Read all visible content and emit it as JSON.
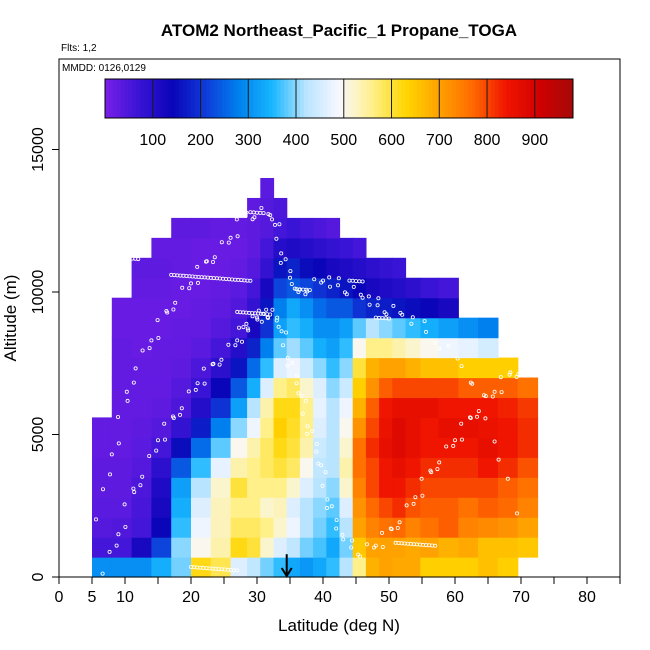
{
  "chart_data": {
    "type": "heatmap",
    "title": "ATOM2 Northeast_Pacific_1 Propane_TOGA",
    "flights_label": "Flts: 1,2",
    "dates_label": "MMDD: 0126,0129",
    "xlabel": "Latitude (deg N)",
    "ylabel": "Altitude (m)",
    "xlim": [
      0,
      85
    ],
    "ylim": [
      0,
      17500
    ],
    "x_ticks": [
      0,
      5,
      10,
      20,
      30,
      40,
      50,
      60,
      70,
      80
    ],
    "x_minor_ticks": [
      15,
      25,
      35,
      45,
      55,
      65,
      75,
      85
    ],
    "y_ticks": [
      0,
      5000,
      10000,
      15000
    ],
    "colorbar": {
      "range": [
        0,
        980
      ],
      "ticks": [
        100,
        200,
        300,
        400,
        500,
        600,
        700,
        800,
        900
      ],
      "colors": [
        "#7a1fe8",
        "#3a14d6",
        "#0a05b8",
        "#0f3ad8",
        "#0080ee",
        "#18b6ff",
        "#b8e4ff",
        "#f8f8ff",
        "#fff08a",
        "#ffd600",
        "#ffa200",
        "#ff6a00",
        "#f01500",
        "#d00000",
        "#a40a0a"
      ]
    },
    "lat_bins": [
      6.5,
      9.5,
      12.5,
      15.5,
      18.5,
      21.5,
      24.5,
      27.5,
      29.5,
      31.5,
      33.5,
      35.5,
      37.5,
      39.5,
      41.5,
      43.5,
      45.5,
      47.5,
      49.5,
      51.5,
      53.5,
      56,
      59,
      62,
      65,
      68,
      71
    ],
    "alt_bins": [
      0,
      700,
      1400,
      2100,
      2800,
      3500,
      4200,
      4900,
      5600,
      6300,
      7000,
      7700,
      8400,
      9100,
      9800,
      10500,
      11200,
      11900,
      12600,
      13300
    ],
    "values": [
      [
        300,
        300,
        300,
        340,
        390,
        620,
        590,
        460,
        430,
        390,
        360,
        330,
        310,
        330,
        360,
        420,
        560,
        680,
        700,
        690,
        690,
        640,
        640,
        640,
        660,
        640,
        0
      ],
      [
        60,
        60,
        120,
        220,
        400,
        500,
        540,
        620,
        600,
        520,
        460,
        430,
        390,
        370,
        330,
        390,
        650,
        700,
        700,
        700,
        690,
        700,
        680,
        690,
        660,
        660,
        650
      ],
      [
        40,
        45,
        60,
        140,
        360,
        480,
        530,
        580,
        580,
        560,
        520,
        480,
        420,
        390,
        360,
        420,
        700,
        740,
        760,
        770,
        740,
        760,
        780,
        740,
        730,
        720,
        700
      ],
      [
        35,
        35,
        55,
        120,
        340,
        460,
        530,
        560,
        560,
        520,
        530,
        460,
        420,
        400,
        380,
        460,
        720,
        770,
        800,
        820,
        790,
        780,
        780,
        760,
        780,
        770,
        740
      ],
      [
        30,
        30,
        50,
        110,
        320,
        420,
        520,
        600,
        560,
        560,
        560,
        520,
        460,
        420,
        400,
        520,
        740,
        800,
        840,
        840,
        820,
        800,
        800,
        800,
        800,
        780,
        760
      ],
      [
        30,
        30,
        40,
        90,
        240,
        360,
        470,
        540,
        560,
        580,
        600,
        580,
        500,
        430,
        420,
        540,
        760,
        800,
        840,
        860,
        840,
        820,
        820,
        820,
        840,
        820,
        790
      ],
      [
        25,
        25,
        35,
        60,
        150,
        260,
        380,
        500,
        540,
        580,
        620,
        600,
        540,
        440,
        420,
        520,
        760,
        820,
        860,
        880,
        860,
        840,
        840,
        840,
        860,
        840,
        820
      ],
      [
        25,
        25,
        30,
        40,
        80,
        170,
        280,
        400,
        480,
        560,
        640,
        610,
        560,
        460,
        420,
        500,
        720,
        800,
        850,
        880,
        860,
        840,
        860,
        860,
        850,
        840,
        820
      ],
      [
        0,
        25,
        25,
        30,
        50,
        100,
        200,
        320,
        420,
        540,
        620,
        620,
        560,
        470,
        420,
        480,
        680,
        780,
        840,
        860,
        860,
        860,
        840,
        840,
        840,
        830,
        810
      ],
      [
        0,
        25,
        25,
        25,
        40,
        70,
        140,
        240,
        340,
        460,
        560,
        580,
        520,
        460,
        400,
        440,
        640,
        720,
        780,
        800,
        800,
        800,
        800,
        780,
        780,
        780,
        760
      ],
      [
        0,
        25,
        25,
        25,
        30,
        50,
        90,
        160,
        260,
        360,
        460,
        480,
        440,
        400,
        360,
        400,
        600,
        680,
        700,
        700,
        680,
        660,
        660,
        640,
        640,
        640,
        0
      ],
      [
        0,
        25,
        20,
        25,
        25,
        35,
        60,
        100,
        180,
        280,
        380,
        410,
        380,
        340,
        320,
        360,
        500,
        560,
        560,
        540,
        520,
        500,
        480,
        470,
        450,
        0,
        0
      ],
      [
        0,
        20,
        20,
        20,
        25,
        25,
        40,
        60,
        120,
        200,
        320,
        360,
        340,
        300,
        300,
        320,
        380,
        420,
        400,
        380,
        360,
        340,
        320,
        300,
        280,
        0,
        0
      ],
      [
        0,
        20,
        20,
        20,
        20,
        25,
        30,
        45,
        80,
        160,
        280,
        330,
        300,
        260,
        240,
        240,
        200,
        180,
        170,
        160,
        150,
        140,
        120,
        0,
        0,
        0,
        0
      ],
      [
        0,
        0,
        25,
        25,
        20,
        20,
        25,
        35,
        60,
        120,
        220,
        240,
        220,
        200,
        180,
        160,
        140,
        120,
        110,
        100,
        90,
        70,
        60,
        0,
        0,
        0,
        0
      ],
      [
        0,
        0,
        30,
        30,
        25,
        20,
        20,
        25,
        40,
        80,
        160,
        180,
        150,
        140,
        120,
        110,
        100,
        90,
        80,
        70,
        0,
        0,
        0,
        0,
        0,
        0,
        0
      ],
      [
        0,
        0,
        0,
        25,
        25,
        20,
        20,
        20,
        30,
        60,
        100,
        110,
        100,
        90,
        80,
        70,
        60,
        0,
        0,
        0,
        0,
        0,
        0,
        0,
        0,
        0,
        0
      ],
      [
        0,
        0,
        0,
        0,
        30,
        30,
        25,
        25,
        30,
        40,
        60,
        70,
        60,
        50,
        40,
        0,
        0,
        0,
        0,
        0,
        0,
        0,
        0,
        0,
        0,
        0,
        0
      ],
      [
        0,
        0,
        0,
        0,
        0,
        0,
        0,
        0,
        30,
        40,
        50,
        0,
        0,
        0,
        0,
        0,
        0,
        0,
        0,
        0,
        0,
        0,
        0,
        0,
        0,
        0,
        0
      ],
      [
        0,
        0,
        0,
        0,
        0,
        0,
        0,
        0,
        0,
        35,
        0,
        0,
        0,
        0,
        0,
        0,
        0,
        0,
        0,
        0,
        0,
        0,
        0,
        0,
        0,
        0,
        0
      ]
    ],
    "flight_tracks": [
      {
        "x": [
          6,
          8,
          10,
          12,
          14,
          16,
          18,
          20,
          22,
          24,
          26,
          28,
          30,
          32,
          33,
          34,
          35,
          36,
          38,
          40,
          42,
          44,
          46,
          48,
          50,
          52,
          55,
          58,
          61,
          64,
          67,
          70
        ],
        "y": [
          2200,
          4300,
          6000,
          7500,
          8300,
          9100,
          9800,
          10300,
          10900,
          11400,
          11900,
          12600,
          12800,
          12700,
          12200,
          11200,
          10500,
          9900,
          10200,
          10400,
          10300,
          10100,
          9800,
          9600,
          9400,
          9200,
          8800,
          8200,
          7400,
          6200,
          4300,
          1200
        ]
      },
      {
        "x": [
          7,
          9,
          11,
          13,
          15,
          17,
          19,
          21,
          23,
          25,
          27,
          28,
          29,
          30,
          31,
          32,
          33,
          34,
          35,
          36,
          37,
          38,
          39,
          40,
          41,
          42,
          44,
          46,
          48,
          50,
          52,
          54,
          56,
          58,
          60,
          62,
          64,
          66,
          68,
          70,
          71
        ],
        "y": [
          300,
          1500,
          2800,
          3700,
          4800,
          5400,
          6100,
          6800,
          7300,
          7800,
          8300,
          8700,
          8900,
          9100,
          9200,
          9300,
          9000,
          8400,
          7600,
          6800,
          6000,
          5200,
          4400,
          3500,
          2600,
          1700,
          1100,
          900,
          1100,
          1500,
          2100,
          2800,
          3500,
          4200,
          4800,
          5400,
          6000,
          6500,
          7000,
          7300,
          7600
        ]
      }
    ],
    "level_legs": [
      {
        "x0": 4,
        "x1": 12,
        "y": 11300
      },
      {
        "x0": 10,
        "x1": 12,
        "y": 12200
      },
      {
        "x0": 17,
        "x1": 29,
        "y": 10600
      },
      {
        "x0": 27,
        "x1": 32,
        "y": 9300
      },
      {
        "x0": 29,
        "x1": 31,
        "y": 12800
      },
      {
        "x0": 36,
        "x1": 38,
        "y": 10100
      },
      {
        "x0": 44,
        "x1": 46,
        "y": 10400
      },
      {
        "x0": 48,
        "x1": 50,
        "y": 9100
      },
      {
        "x0": 51,
        "x1": 57,
        "y": 1200
      },
      {
        "x0": 20,
        "x1": 27,
        "y": 350
      }
    ],
    "arrow_annotation": {
      "x": 34.5,
      "y_top": 800,
      "y_bottom": 0
    }
  }
}
